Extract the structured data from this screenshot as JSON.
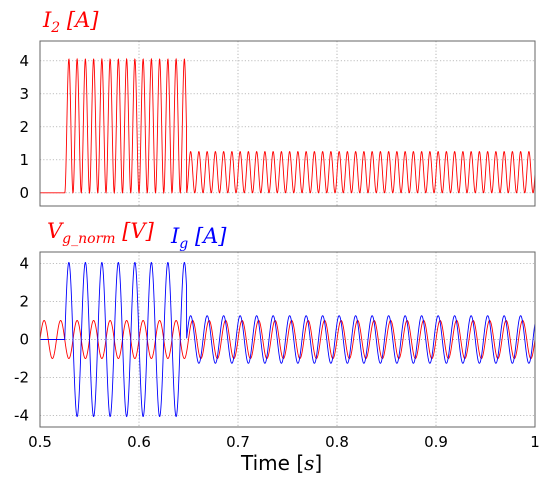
{
  "chart_data": [
    {
      "type": "line",
      "title": "",
      "xlabel": "",
      "ylabel": "I2 [A]",
      "label_parts": [
        {
          "base": "I",
          "sub": "2",
          "unit": " [A]",
          "color": "#ff0000"
        }
      ],
      "xlim": [
        0.5,
        1.0
      ],
      "ylim": [
        -0.4,
        4.6
      ],
      "yticks": [
        "4",
        "3",
        "2",
        "1",
        "0"
      ],
      "ytick_values": [
        4,
        3,
        2,
        1,
        0
      ],
      "x_gridlines": [
        0.6,
        0.7,
        0.8,
        0.9
      ],
      "grid": true,
      "series": [
        {
          "color": "#ff0000",
          "waveform": "rectified-sine",
          "segments": [
            {
              "x_start": 0.5,
              "x_end": 0.525,
              "amplitude": 0,
              "frequency_hz": 0
            },
            {
              "x_start": 0.525,
              "x_end": 0.648,
              "amplitude": 4.05,
              "frequency_hz": 120
            },
            {
              "x_start": 0.648,
              "x_end": 1.0,
              "amplitude": 1.25,
              "frequency_hz": 120
            }
          ]
        }
      ]
    },
    {
      "type": "line",
      "title": "",
      "xlabel": "Time [s]",
      "ylabel": "Vg_norm [V], Ig [A]",
      "label_parts": [
        {
          "base": "V",
          "sub": "g_norm",
          "unit": " [V]",
          "color": "#ff0000"
        },
        {
          "base": "I",
          "sub": "g",
          "unit": " [A]",
          "color": "#0000ff"
        }
      ],
      "xlim": [
        0.5,
        1.0
      ],
      "ylim": [
        -4.6,
        4.6
      ],
      "yticks": [
        "4",
        "2",
        "0",
        "-2",
        "-4"
      ],
      "ytick_values": [
        4,
        2,
        0,
        -2,
        -4
      ],
      "xticks": [
        "0.5",
        "0.6",
        "0.7",
        "0.8",
        "0.9",
        "1"
      ],
      "xtick_values": [
        0.5,
        0.6,
        0.7,
        0.8,
        0.9,
        1.0
      ],
      "grid": true,
      "series": [
        {
          "color": "#ff0000",
          "waveform": "sine",
          "segments": [
            {
              "x_start": 0.5,
              "x_end": 1.0,
              "amplitude": 1.0,
              "frequency_hz": 60
            }
          ]
        },
        {
          "color": "#0000ff",
          "waveform": "sine",
          "segments": [
            {
              "x_start": 0.5,
              "x_end": 0.525,
              "amplitude": 0,
              "frequency_hz": 60
            },
            {
              "x_start": 0.525,
              "x_end": 0.648,
              "amplitude": 4.05,
              "frequency_hz": 60
            },
            {
              "x_start": 0.648,
              "x_end": 1.0,
              "amplitude": 1.25,
              "frequency_hz": 60
            }
          ]
        }
      ]
    }
  ],
  "labels": {
    "top_I": "I",
    "top_I_sub": "2",
    "top_I_unit": " [A]",
    "bot_V": "V",
    "bot_V_sub": "g_norm",
    "bot_V_unit": " [V]",
    "bot_I": "I",
    "bot_I_sub": "g",
    "bot_I_unit": " [A]",
    "xlabel_word": "Time ",
    "xlabel_lb": "[",
    "xlabel_s": "s",
    "xlabel_rb": "]"
  }
}
